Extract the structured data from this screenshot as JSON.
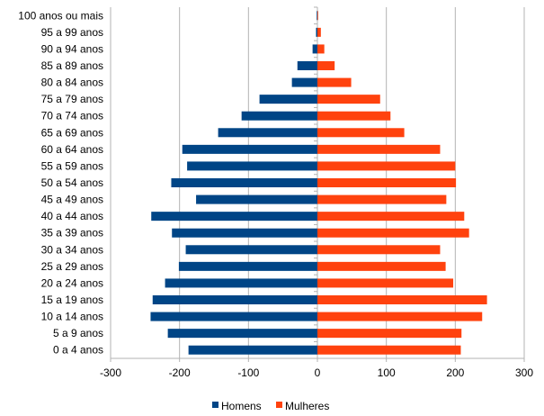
{
  "chart_data": {
    "type": "bar",
    "orientation": "horizontal",
    "diverging": true,
    "categories": [
      "100 anos ou mais",
      "95 a 99 anos",
      "90 a 94 anos",
      "85 a 89 anos",
      "80 a 84 anos",
      "75 a 79 anos",
      "70 a 74 anos",
      "65 a 69 anos",
      "60 a 64 anos",
      "55 a 59 anos",
      "50 a 54 anos",
      "45 a 49 anos",
      "40 a 44 anos",
      "35 a 39 anos",
      "30 a 34 anos",
      "25 a 29 anos",
      "20 a 24 anos",
      "15 a 19 anos",
      "10 a 14 anos",
      "5 a 9 anos",
      "0 a 4 anos"
    ],
    "series": [
      {
        "name": "Homens",
        "color": "#004586",
        "values": [
          -1,
          -2,
          -7,
          -29,
          -37,
          -84,
          -110,
          -144,
          -196,
          -189,
          -212,
          -176,
          -241,
          -211,
          -191,
          -201,
          -221,
          -239,
          -242,
          -217,
          -187
        ]
      },
      {
        "name": "Mulheres",
        "color": "#ff420e",
        "values": [
          1,
          5,
          10,
          25,
          49,
          91,
          106,
          126,
          178,
          200,
          201,
          187,
          213,
          220,
          178,
          186,
          197,
          246,
          239,
          209,
          208
        ]
      }
    ],
    "xlim": [
      -300,
      300
    ],
    "xticks": [
      -300,
      -200,
      -100,
      0,
      100,
      200,
      300
    ],
    "xtick_labels": [
      "-300",
      "-200",
      "-100",
      "0",
      "100",
      "200",
      "300"
    ],
    "grid": "vertical",
    "legend_position": "bottom"
  }
}
